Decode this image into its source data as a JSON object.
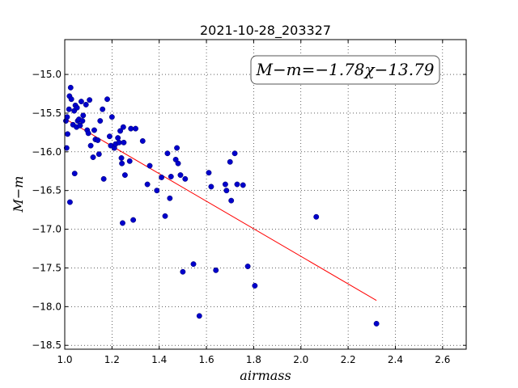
{
  "chart_data": {
    "type": "scatter",
    "title": "2021-10-28_203327",
    "xlabel": "airmass",
    "ylabel": "M−m",
    "xlim": [
      1.0,
      2.7
    ],
    "ylim": [
      -18.55,
      -14.55
    ],
    "x_ticks": [
      1.0,
      1.2,
      1.4,
      1.6,
      1.8,
      2.0,
      2.2,
      2.4,
      2.6
    ],
    "x_tick_labels": [
      "1.0",
      "1.2",
      "1.4",
      "1.6",
      "1.8",
      "2.0",
      "2.2",
      "2.4",
      "2.6"
    ],
    "y_ticks": [
      -15.0,
      -15.5,
      -16.0,
      -16.5,
      -17.0,
      -17.5,
      -18.0,
      -18.5
    ],
    "y_tick_labels": [
      "−15.0",
      "−15.5",
      "−16.0",
      "−16.5",
      "−17.0",
      "−17.5",
      "−18.0",
      "−18.5"
    ],
    "grid": true,
    "annotation": "M−m=−1.78χ−13.79",
    "fit": {
      "slope": -1.78,
      "intercept": -13.79,
      "x_range": [
        1.0,
        2.32
      ],
      "color": "#ff0000"
    },
    "point_color": "#0000cc",
    "points": [
      [
        1.005,
        -15.6
      ],
      [
        1.008,
        -15.95
      ],
      [
        1.01,
        -15.55
      ],
      [
        1.012,
        -15.77
      ],
      [
        1.018,
        -15.45
      ],
      [
        1.02,
        -15.28
      ],
      [
        1.022,
        -16.65
      ],
      [
        1.025,
        -15.17
      ],
      [
        1.028,
        -15.32
      ],
      [
        1.035,
        -15.65
      ],
      [
        1.04,
        -15.47
      ],
      [
        1.042,
        -16.28
      ],
      [
        1.045,
        -15.4
      ],
      [
        1.05,
        -15.68
      ],
      [
        1.052,
        -15.43
      ],
      [
        1.055,
        -15.6
      ],
      [
        1.06,
        -15.58
      ],
      [
        1.065,
        -15.66
      ],
      [
        1.07,
        -15.35
      ],
      [
        1.075,
        -15.6
      ],
      [
        1.078,
        -15.53
      ],
      [
        1.09,
        -15.39
      ],
      [
        1.095,
        -15.72
      ],
      [
        1.1,
        -15.76
      ],
      [
        1.105,
        -15.33
      ],
      [
        1.11,
        -15.92
      ],
      [
        1.12,
        -16.07
      ],
      [
        1.125,
        -15.72
      ],
      [
        1.13,
        -15.84
      ],
      [
        1.14,
        -15.85
      ],
      [
        1.145,
        -16.03
      ],
      [
        1.15,
        -15.6
      ],
      [
        1.16,
        -15.45
      ],
      [
        1.165,
        -16.35
      ],
      [
        1.18,
        -15.32
      ],
      [
        1.19,
        -15.8
      ],
      [
        1.195,
        -15.92
      ],
      [
        1.2,
        -15.55
      ],
      [
        1.21,
        -15.95
      ],
      [
        1.215,
        -15.9
      ],
      [
        1.225,
        -15.82
      ],
      [
        1.23,
        -15.88
      ],
      [
        1.235,
        -15.73
      ],
      [
        1.24,
        -16.08
      ],
      [
        1.242,
        -16.15
      ],
      [
        1.245,
        -16.92
      ],
      [
        1.248,
        -15.68
      ],
      [
        1.25,
        -15.88
      ],
      [
        1.255,
        -16.3
      ],
      [
        1.275,
        -16.12
      ],
      [
        1.28,
        -15.7
      ],
      [
        1.29,
        -16.88
      ],
      [
        1.3,
        -15.7
      ],
      [
        1.33,
        -15.86
      ],
      [
        1.35,
        -16.42
      ],
      [
        1.36,
        -16.18
      ],
      [
        1.39,
        -16.5
      ],
      [
        1.41,
        -16.33
      ],
      [
        1.425,
        -16.83
      ],
      [
        1.435,
        -16.02
      ],
      [
        1.445,
        -16.6
      ],
      [
        1.45,
        -16.32
      ],
      [
        1.47,
        -16.1
      ],
      [
        1.475,
        -15.95
      ],
      [
        1.48,
        -16.15
      ],
      [
        1.49,
        -16.3
      ],
      [
        1.5,
        -17.55
      ],
      [
        1.51,
        -16.35
      ],
      [
        1.545,
        -17.45
      ],
      [
        1.57,
        -18.12
      ],
      [
        1.61,
        -16.27
      ],
      [
        1.62,
        -16.45
      ],
      [
        1.64,
        -17.53
      ],
      [
        1.68,
        -16.42
      ],
      [
        1.685,
        -16.5
      ],
      [
        1.7,
        -16.13
      ],
      [
        1.705,
        -16.63
      ],
      [
        1.72,
        -16.02
      ],
      [
        1.73,
        -16.42
      ],
      [
        1.755,
        -16.43
      ],
      [
        1.775,
        -17.48
      ],
      [
        1.805,
        -17.73
      ],
      [
        2.065,
        -16.84
      ],
      [
        2.32,
        -18.22
      ]
    ]
  }
}
